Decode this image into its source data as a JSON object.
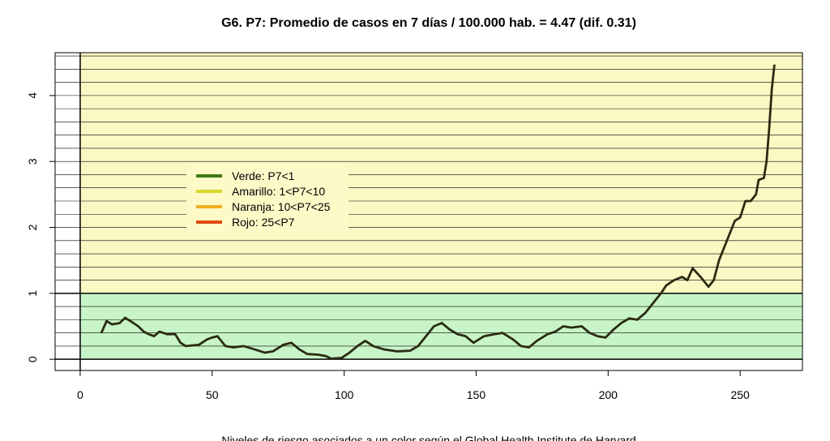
{
  "chart_data": {
    "type": "line",
    "title": "G6. P7: Promedio de casos en 7 días / 100.000 hab. = 4.47 (dif. 0.31)",
    "caption": "Niveles de riesgo asociados a un color según el Global Health Institute de Harvard",
    "x": [
      8,
      10,
      12,
      15,
      17,
      19,
      22,
      24,
      26,
      28,
      30,
      33,
      36,
      38,
      40,
      45,
      48,
      50,
      52,
      55,
      58,
      62,
      66,
      70,
      73,
      77,
      80,
      83,
      86,
      90,
      93,
      95,
      99,
      102,
      105,
      108,
      111,
      115,
      120,
      125,
      128,
      131,
      134,
      137,
      140,
      143,
      146,
      149,
      153,
      157,
      160,
      164,
      167,
      170,
      173,
      177,
      180,
      183,
      186,
      190,
      193,
      196,
      199,
      202,
      205,
      208,
      211,
      214,
      217,
      220,
      222,
      225,
      228,
      230,
      232,
      235,
      238,
      240,
      242,
      245,
      248,
      250,
      252,
      254,
      256,
      257,
      259,
      260,
      261,
      262,
      263
    ],
    "series": [
      {
        "name": "P7",
        "color": "#2b2b12",
        "values": [
          0.4,
          0.58,
          0.53,
          0.55,
          0.63,
          0.58,
          0.5,
          0.42,
          0.38,
          0.35,
          0.42,
          0.38,
          0.38,
          0.25,
          0.2,
          0.22,
          0.3,
          0.33,
          0.35,
          0.2,
          0.18,
          0.2,
          0.15,
          0.1,
          0.12,
          0.22,
          0.25,
          0.15,
          0.08,
          0.07,
          0.05,
          0.01,
          0.02,
          0.1,
          0.2,
          0.28,
          0.2,
          0.15,
          0.12,
          0.13,
          0.2,
          0.35,
          0.5,
          0.55,
          0.45,
          0.38,
          0.35,
          0.25,
          0.35,
          0.38,
          0.4,
          0.3,
          0.2,
          0.18,
          0.28,
          0.38,
          0.42,
          0.5,
          0.48,
          0.5,
          0.4,
          0.35,
          0.33,
          0.45,
          0.55,
          0.62,
          0.6,
          0.7,
          0.85,
          1.0,
          1.12,
          1.2,
          1.25,
          1.2,
          1.38,
          1.25,
          1.1,
          1.2,
          1.5,
          1.8,
          2.1,
          2.15,
          2.4,
          2.4,
          2.5,
          2.72,
          2.75,
          3.0,
          3.5,
          4.1,
          4.47
        ]
      }
    ],
    "xlim": [
      -9.5,
      273.6
    ],
    "ylim": [
      -0.17,
      4.65
    ],
    "xticks": [
      0,
      50,
      100,
      150,
      200,
      250
    ],
    "yticks": [
      0,
      1,
      2,
      3,
      4
    ],
    "ygrid": [
      0,
      0.2,
      0.4,
      0.6,
      0.8,
      1,
      1.2,
      1.4,
      1.6,
      1.8,
      2,
      2.2,
      2.4,
      2.6,
      2.8,
      3,
      3.2,
      3.4,
      3.6,
      3.8,
      4,
      4.2,
      4.4,
      4.6
    ],
    "bands": [
      {
        "from": 0,
        "to": 1,
        "color": "#c8f5c8"
      },
      {
        "from": 1,
        "to": 4.65,
        "color": "#fbf8c4"
      }
    ],
    "legend": [
      {
        "label": "Verde:  P7<1",
        "color": "#3f7a12"
      },
      {
        "label": "Amarillo: 1<P7<10",
        "color": "#d8d82a"
      },
      {
        "label": "Naranja: 10<P7<25",
        "color": "#f0b020"
      },
      {
        "label": "Rojo:  25<P7",
        "color": "#e04a10"
      }
    ]
  }
}
